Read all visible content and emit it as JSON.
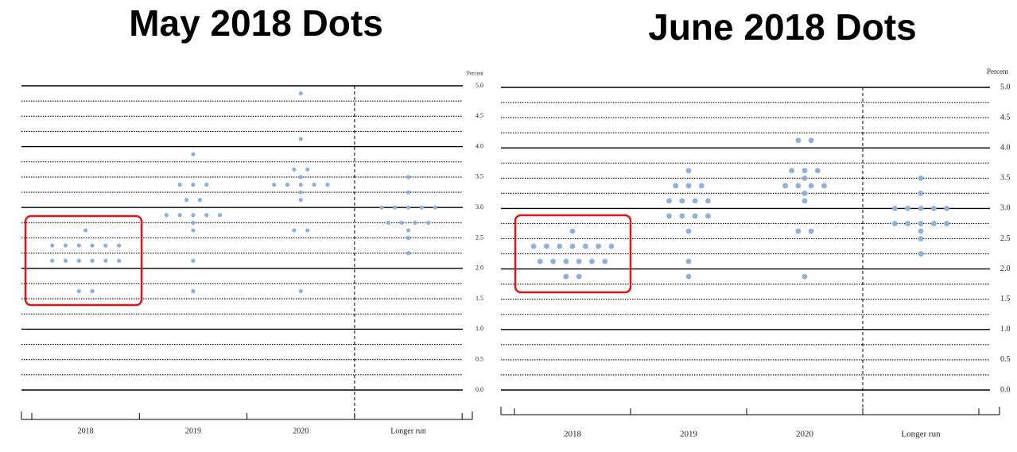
{
  "chart_data": [
    {
      "type": "dot",
      "title": "May 2018 Dots",
      "y_label": "Percent",
      "color": "#8fb0d9",
      "categories": [
        "2018",
        "2019",
        "2020",
        "Longer run"
      ],
      "values": [
        [
          2.625,
          2.375,
          2.375,
          2.375,
          2.375,
          2.375,
          2.375,
          2.125,
          2.125,
          2.125,
          2.125,
          2.125,
          2.125,
          1.625,
          1.625
        ],
        [
          3.875,
          3.375,
          3.375,
          3.375,
          3.125,
          3.125,
          2.875,
          2.875,
          2.875,
          2.875,
          2.875,
          2.75,
          2.625,
          2.125,
          1.625
        ],
        [
          4.875,
          4.125,
          3.625,
          3.625,
          3.5,
          3.375,
          3.375,
          3.375,
          3.375,
          3.375,
          3.25,
          3.125,
          2.625,
          2.625,
          1.625
        ],
        [
          3.5,
          3.25,
          3.0,
          3.0,
          3.0,
          3.0,
          3.0,
          2.75,
          2.75,
          2.75,
          2.75,
          2.625,
          2.5,
          2.25
        ]
      ],
      "ylim": [
        0,
        5
      ],
      "yticks": [
        {
          "value": 0,
          "label": "0.0"
        },
        0.5,
        {
          "value": 1,
          "label": "1.0"
        },
        1.5,
        {
          "value": 2,
          "label": "2.0"
        },
        2.5,
        {
          "value": 3,
          "label": "3.0"
        },
        3.5,
        {
          "value": 4,
          "label": "4.0"
        },
        4.5,
        {
          "value": 5,
          "label": "5.0"
        }
      ],
      "grid": true
    },
    {
      "type": "dot",
      "title": "June 2018 Dots",
      "y_label": "Percent",
      "color": "#8fb0d9",
      "categories": [
        "2018",
        "2019",
        "2020",
        "Longer run"
      ],
      "values": [
        [
          2.625,
          2.375,
          2.375,
          2.375,
          2.375,
          2.375,
          2.375,
          2.375,
          2.125,
          2.125,
          2.125,
          2.125,
          2.125,
          2.125,
          1.875,
          1.875
        ],
        [
          3.625,
          3.375,
          3.375,
          3.375,
          3.125,
          3.125,
          3.125,
          3.125,
          2.875,
          2.875,
          2.875,
          2.875,
          2.625,
          2.125,
          1.875
        ],
        [
          4.125,
          4.125,
          3.625,
          3.625,
          3.625,
          3.5,
          3.375,
          3.375,
          3.375,
          3.375,
          3.25,
          3.125,
          2.625,
          2.625,
          1.875
        ],
        [
          3.5,
          3.25,
          3.0,
          3.0,
          3.0,
          3.0,
          3.0,
          2.75,
          2.75,
          2.75,
          2.75,
          2.75,
          2.625,
          2.5,
          2.25
        ]
      ],
      "ylim": [
        0,
        5
      ],
      "yticks": [
        {
          "value": 0,
          "label": "0.0"
        },
        0.5,
        {
          "value": 1,
          "label": "1.0"
        },
        1.5,
        {
          "value": 2,
          "label": "2.0"
        },
        2.5,
        {
          "value": 3,
          "label": "3.0"
        },
        3.5,
        {
          "value": 4,
          "label": "4.0"
        },
        4.5,
        {
          "value": 5,
          "label": "5.0"
        }
      ],
      "grid": true
    }
  ]
}
